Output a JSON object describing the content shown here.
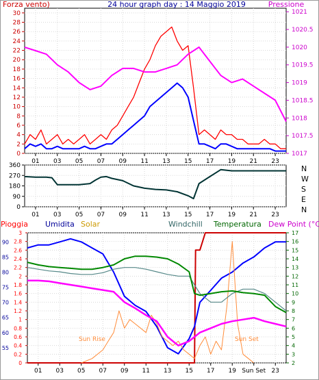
{
  "chart_data": [
    {
      "type": "line",
      "title": "24 hour graph day : 14 Maggio 2019",
      "ylabel_left": "Forza vento)",
      "ylabel_right": "Pressione",
      "xticks": [
        "01",
        "03",
        "05",
        "07",
        "09",
        "11",
        "13",
        "15",
        "17",
        "19",
        "21",
        "23"
      ],
      "ylim_left": [
        0,
        31
      ],
      "yticks_left": [
        0,
        2,
        4,
        6,
        8,
        10,
        12,
        14,
        16,
        18,
        20,
        22,
        24,
        26,
        28,
        30
      ],
      "ylim_right": [
        1017,
        1021.1
      ],
      "yticks_right": [
        "1017",
        "1017.5",
        "1018",
        "1018.5",
        "1019",
        "1019.5",
        "1020",
        "1020.5",
        "1021"
      ],
      "colors": {
        "gust": "#ff0000",
        "wind": "#0000ff",
        "pressure": "#ff00ff",
        "left_axis": "#cc0000",
        "right_axis": "#cc00cc",
        "title": "#000099"
      },
      "series": [
        {
          "key": "gust",
          "axis": "left",
          "x": [
            0,
            0.5,
            1,
            1.5,
            2,
            2.5,
            3,
            3.5,
            4,
            4.5,
            5,
            5.5,
            6,
            6.5,
            7,
            7.5,
            8,
            8.5,
            9,
            9.5,
            10,
            10.5,
            11,
            11.5,
            12,
            12.5,
            13,
            13.5,
            14,
            14.5,
            15,
            15.5,
            16,
            16.5,
            17,
            17.5,
            18,
            18.5,
            19,
            19.5,
            20,
            20.5,
            21,
            21.5,
            22,
            22.5,
            23,
            23.5,
            24
          ],
          "values": [
            2,
            4,
            3,
            5,
            2,
            3,
            4,
            2,
            3,
            2,
            3,
            4,
            2,
            3,
            4,
            3,
            5,
            6,
            8,
            10,
            12,
            15,
            18,
            20,
            23,
            25,
            26,
            27,
            24,
            22,
            23,
            14,
            4,
            5,
            4,
            3,
            5,
            4,
            4,
            3,
            3,
            2,
            2,
            2,
            3,
            2,
            2,
            1,
            1
          ]
        },
        {
          "key": "wind",
          "axis": "left",
          "x": [
            0,
            0.5,
            1,
            1.5,
            2,
            2.5,
            3,
            3.5,
            4,
            4.5,
            5,
            5.5,
            6,
            6.5,
            7,
            7.5,
            8,
            8.5,
            9,
            9.5,
            10,
            10.5,
            11,
            11.5,
            12,
            12.5,
            13,
            13.5,
            14,
            14.5,
            15,
            15.5,
            16,
            16.5,
            17,
            17.5,
            18,
            18.5,
            19,
            19.5,
            20,
            20.5,
            21,
            21.5,
            22,
            22.5,
            23,
            23.5,
            24
          ],
          "values": [
            1,
            2,
            1.5,
            2,
            1,
            1,
            1.5,
            1,
            1,
            1,
            1,
            1.5,
            1,
            1,
            1.5,
            2,
            2,
            3,
            4,
            5,
            6,
            7,
            8,
            10,
            11,
            12,
            13,
            14,
            15,
            14,
            12,
            7,
            2,
            2,
            1.5,
            1,
            2,
            2,
            1.5,
            1,
            1,
            1,
            1,
            1,
            1,
            1,
            0.5,
            0.5,
            0.5
          ]
        },
        {
          "key": "pressure",
          "axis": "right",
          "x": [
            0,
            1,
            2,
            3,
            4,
            5,
            6,
            7,
            8,
            9,
            10,
            11,
            12,
            13,
            14,
            15,
            16,
            17,
            18,
            19,
            20,
            21,
            22,
            23,
            24
          ],
          "values": [
            1020,
            1019.9,
            1019.8,
            1019.5,
            1019.3,
            1019,
            1018.8,
            1018.9,
            1019.2,
            1019.4,
            1019.4,
            1019.3,
            1019.3,
            1019.4,
            1019.5,
            1019.8,
            1020,
            1019.6,
            1019.2,
            1019,
            1019.1,
            1018.9,
            1018.7,
            1018.5,
            1017.9
          ]
        }
      ]
    },
    {
      "type": "line",
      "xticks": [
        "01",
        "03",
        "05",
        "07",
        "09",
        "11",
        "13",
        "15",
        "17",
        "19",
        "21",
        "23"
      ],
      "ylim": [
        0,
        360
      ],
      "yticks": [
        "0",
        "90",
        "180",
        "270",
        "360"
      ],
      "direction_labels": [
        "N",
        "W",
        "S",
        "E",
        "N"
      ],
      "colors": {
        "direction": "#003333",
        "axis": "#000000"
      },
      "series": [
        {
          "key": "direction",
          "x": [
            0,
            1,
            2,
            2.5,
            3,
            4,
            5,
            6,
            6.5,
            7,
            7.5,
            8,
            9,
            10,
            11,
            12,
            13,
            14,
            15,
            15.5,
            16,
            17,
            18,
            19,
            20,
            21,
            22,
            23,
            24
          ],
          "values": [
            260,
            255,
            255,
            250,
            190,
            190,
            190,
            200,
            230,
            255,
            260,
            245,
            225,
            180,
            160,
            150,
            145,
            130,
            95,
            70,
            200,
            260,
            320,
            310,
            310,
            310,
            310,
            310,
            310
          ]
        }
      ]
    },
    {
      "type": "line",
      "ylabel_left": "Pioggia",
      "header_labels": [
        "Umidita",
        "Solar",
        "Windchill",
        "Temperatura",
        "Dew Point (°C)"
      ],
      "annotations": [
        "Sun Rise",
        "Sun Set"
      ],
      "xticks": [
        "01",
        "03",
        "05",
        "07",
        "09",
        "11",
        "13",
        "15",
        "17",
        "19",
        "Sun Set",
        "23"
      ],
      "ylim_rain": [
        0,
        3.0
      ],
      "yticks_rain": [
        "0",
        "0.2",
        "0.4",
        "0.6",
        "0.8",
        "1",
        "1.2",
        "1.4",
        "1.6",
        "1.8",
        "2",
        "2.2",
        "2.4",
        "2.6",
        "2.8",
        "3"
      ],
      "ylim_humidity": [
        50,
        93
      ],
      "yticks_humidity": [
        "55",
        "60",
        "65",
        "70",
        "75",
        "80",
        "85",
        "90"
      ],
      "ylim_temp": [
        2,
        17
      ],
      "yticks_temp": [
        "2",
        "3",
        "4",
        "5",
        "6",
        "7",
        "8",
        "9",
        "10",
        "11",
        "12",
        "13",
        "14",
        "15",
        "16",
        "17"
      ],
      "colors": {
        "rain": "#cc0000",
        "humidity": "#0000ff",
        "solar": "#ff8c3a",
        "windchill": "#558888",
        "temperature": "#008800",
        "dewpoint": "#ff00ff",
        "label_rain": "#ff0000",
        "label_humidity": "#000099",
        "label_solar": "#cc9900",
        "label_windchill": "#336666",
        "label_temperature": "#006600",
        "label_dewpoint": "#cc00cc"
      },
      "series": [
        {
          "key": "rain",
          "axis": "rain",
          "x": [
            0,
            15.5,
            15.6,
            16,
            16.5,
            24
          ],
          "values": [
            0,
            0,
            2.6,
            2.6,
            3,
            3
          ]
        },
        {
          "key": "humidity",
          "axis": "humidity",
          "x": [
            0,
            1,
            2,
            3,
            4,
            5,
            6,
            7,
            8,
            9,
            10,
            11,
            12,
            13,
            14,
            15,
            15.5,
            16,
            17,
            18,
            19,
            20,
            21,
            22,
            23,
            24
          ],
          "values": [
            88,
            89,
            89,
            90,
            91,
            90,
            88,
            86,
            80,
            72,
            69,
            67,
            62,
            55,
            53,
            58,
            62,
            70,
            74,
            78,
            80,
            83,
            85,
            88,
            90,
            90
          ]
        },
        {
          "key": "solar",
          "axis": "rain",
          "x": [
            5,
            6,
            7,
            7.5,
            8,
            8.5,
            9,
            9.5,
            10,
            10.5,
            11,
            11.5,
            12,
            12.5,
            13,
            13.5,
            14,
            14.5,
            15,
            15.5,
            16,
            16.5,
            17,
            17.5,
            18,
            18.5,
            19,
            19.5,
            20,
            20.5,
            21
          ],
          "values": [
            0,
            0.1,
            0.3,
            0.5,
            0.7,
            1.2,
            0.8,
            1.0,
            0.9,
            0.8,
            0.7,
            1.1,
            0.9,
            0.6,
            0.5,
            0.4,
            0.5,
            0.3,
            0.2,
            0.1,
            0.4,
            0.6,
            0.2,
            0.5,
            0.3,
            1.3,
            2.8,
            0.9,
            0.2,
            0.1,
            0
          ]
        },
        {
          "key": "windchill",
          "axis": "temp",
          "x": [
            0,
            1,
            2,
            3,
            4,
            5,
            6,
            7,
            8,
            9,
            10,
            11,
            12,
            13,
            14,
            15,
            15.5,
            16,
            17,
            18,
            19,
            20,
            21,
            22,
            23,
            24
          ],
          "values": [
            13,
            12.8,
            12.6,
            12.5,
            12.3,
            12.2,
            12.2,
            12.4,
            12.8,
            13,
            13,
            12.8,
            12.5,
            12.2,
            12,
            12,
            11,
            10,
            9,
            9,
            10,
            10.5,
            10.5,
            10,
            9,
            8
          ]
        },
        {
          "key": "temperature",
          "axis": "temp",
          "x": [
            0,
            1,
            2,
            3,
            4,
            5,
            6,
            7,
            8,
            9,
            10,
            11,
            12,
            13,
            14,
            15,
            15.5,
            16,
            17,
            18,
            19,
            20,
            21,
            22,
            23,
            24
          ],
          "values": [
            13.6,
            13.3,
            13.1,
            13,
            12.9,
            12.8,
            12.8,
            13,
            13.3,
            14,
            14.3,
            14.3,
            14.2,
            14,
            13.4,
            12.5,
            10,
            9.8,
            10,
            10.2,
            10.3,
            10.1,
            10,
            9.8,
            8.5,
            7.8
          ]
        },
        {
          "key": "dewpoint",
          "axis": "temp",
          "x": [
            0,
            1,
            2,
            3,
            4,
            5,
            6,
            7,
            8,
            9,
            10,
            11,
            12,
            13,
            14,
            15,
            15.5,
            16,
            17,
            18,
            19,
            20,
            21,
            22,
            23,
            24
          ],
          "values": [
            11.5,
            11.5,
            11.4,
            11.2,
            11,
            10.8,
            10.6,
            10.4,
            10.2,
            9,
            8.3,
            7.5,
            6.8,
            5,
            4,
            4.5,
            5,
            5.5,
            6,
            6.5,
            6.8,
            7,
            7.2,
            6.8,
            6.5,
            6.2
          ]
        }
      ]
    }
  ]
}
